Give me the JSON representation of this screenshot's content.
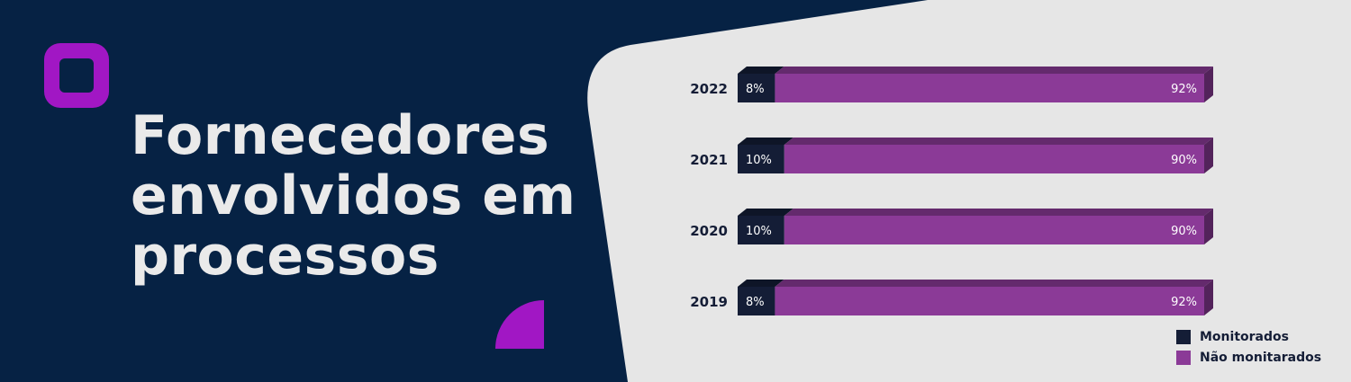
{
  "title": "Fornecedores envolvidos em processos",
  "colors": {
    "background": "#062244",
    "panel": "#e6e6e6",
    "accent": "#a117c4",
    "monitorados": "#141d36",
    "nao_monitorados": "#8b3a97"
  },
  "chart_data": {
    "type": "bar",
    "orientation": "horizontal",
    "stacked": true,
    "categories": [
      "2022",
      "2021",
      "2020",
      "2019"
    ],
    "series": [
      {
        "name": "Monitorados",
        "values": [
          8,
          10,
          10,
          8
        ],
        "labels": [
          "8%",
          "10%",
          "10%",
          "8%"
        ],
        "color": "#141d36"
      },
      {
        "name": "Não monitarados",
        "values": [
          92,
          90,
          90,
          92
        ],
        "labels": [
          "92%",
          "90%",
          "90%",
          "92%"
        ],
        "color": "#8b3a97"
      }
    ],
    "xlim": [
      0,
      100
    ],
    "legend": {
      "position": "bottom-right"
    }
  }
}
